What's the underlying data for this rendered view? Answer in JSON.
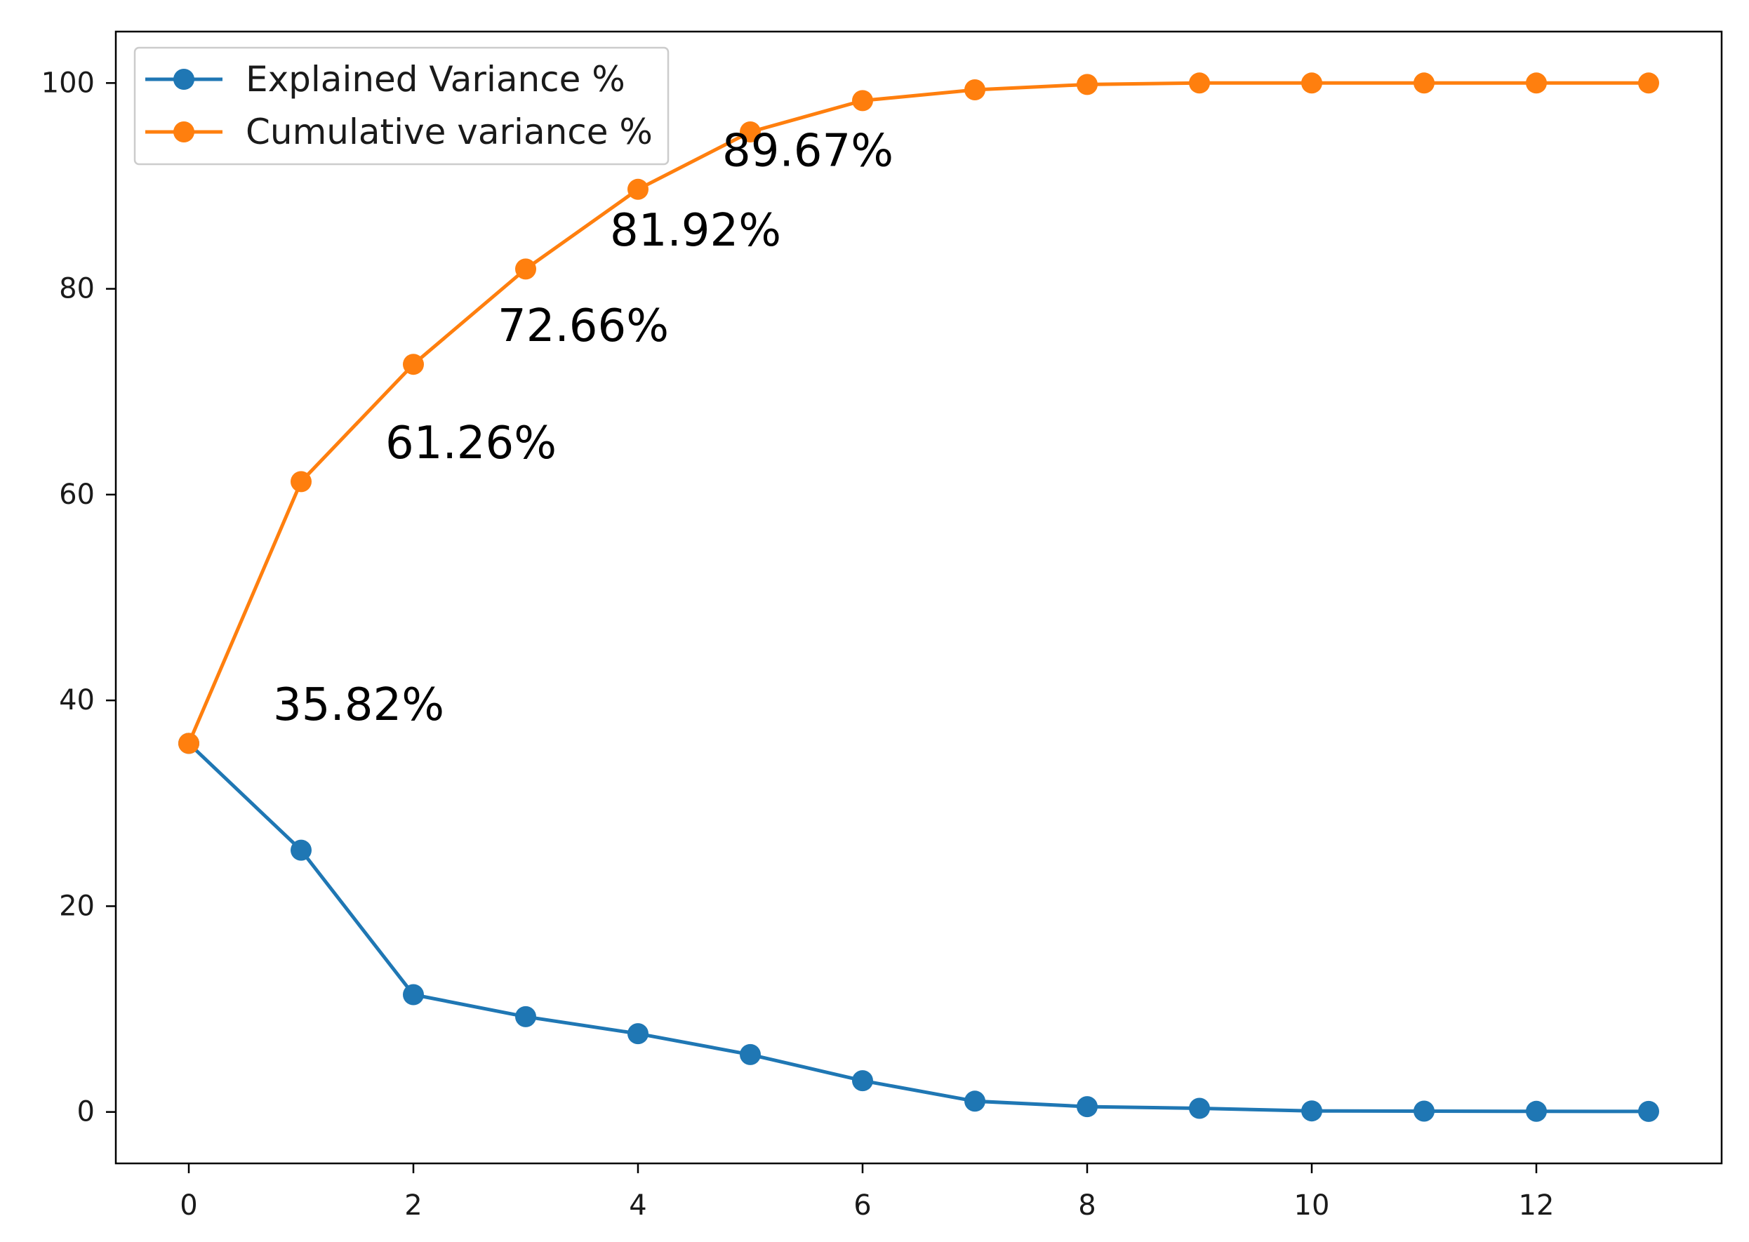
{
  "chart_data": {
    "type": "line",
    "title": "",
    "xlabel": "",
    "ylabel": "",
    "xlim": [
      -0.65,
      13.65
    ],
    "ylim": [
      -5,
      105
    ],
    "grid": false,
    "legend_position": "top-left",
    "x": [
      0,
      1,
      2,
      3,
      4,
      5,
      6,
      7,
      8,
      9,
      10,
      11,
      12,
      13
    ],
    "x_ticks": [
      0,
      2,
      4,
      6,
      8,
      10,
      12
    ],
    "y_ticks": [
      0,
      20,
      40,
      60,
      80,
      100
    ],
    "series": [
      {
        "name": "Explained Variance %",
        "color": "#1f77b4",
        "values": [
          35.82,
          25.44,
          11.4,
          9.26,
          7.61,
          5.58,
          3.04,
          1.05,
          0.52,
          0.35,
          0.1,
          0.08,
          0.06,
          0.05
        ]
      },
      {
        "name": "Cumulative variance %",
        "color": "#ff7f0e",
        "values": [
          35.82,
          61.26,
          72.66,
          81.92,
          89.67,
          95.25,
          98.29,
          99.34,
          99.86,
          100.0,
          100.0,
          100.0,
          100.0,
          100.0
        ]
      }
    ],
    "annotations": [
      {
        "text": "35.82%",
        "x": 0,
        "y": 35.82
      },
      {
        "text": "61.26%",
        "x": 1,
        "y": 61.26
      },
      {
        "text": "72.66%",
        "x": 2,
        "y": 72.66
      },
      {
        "text": "81.92%",
        "x": 3,
        "y": 81.92
      },
      {
        "text": "89.67%",
        "x": 4,
        "y": 89.67
      }
    ]
  }
}
